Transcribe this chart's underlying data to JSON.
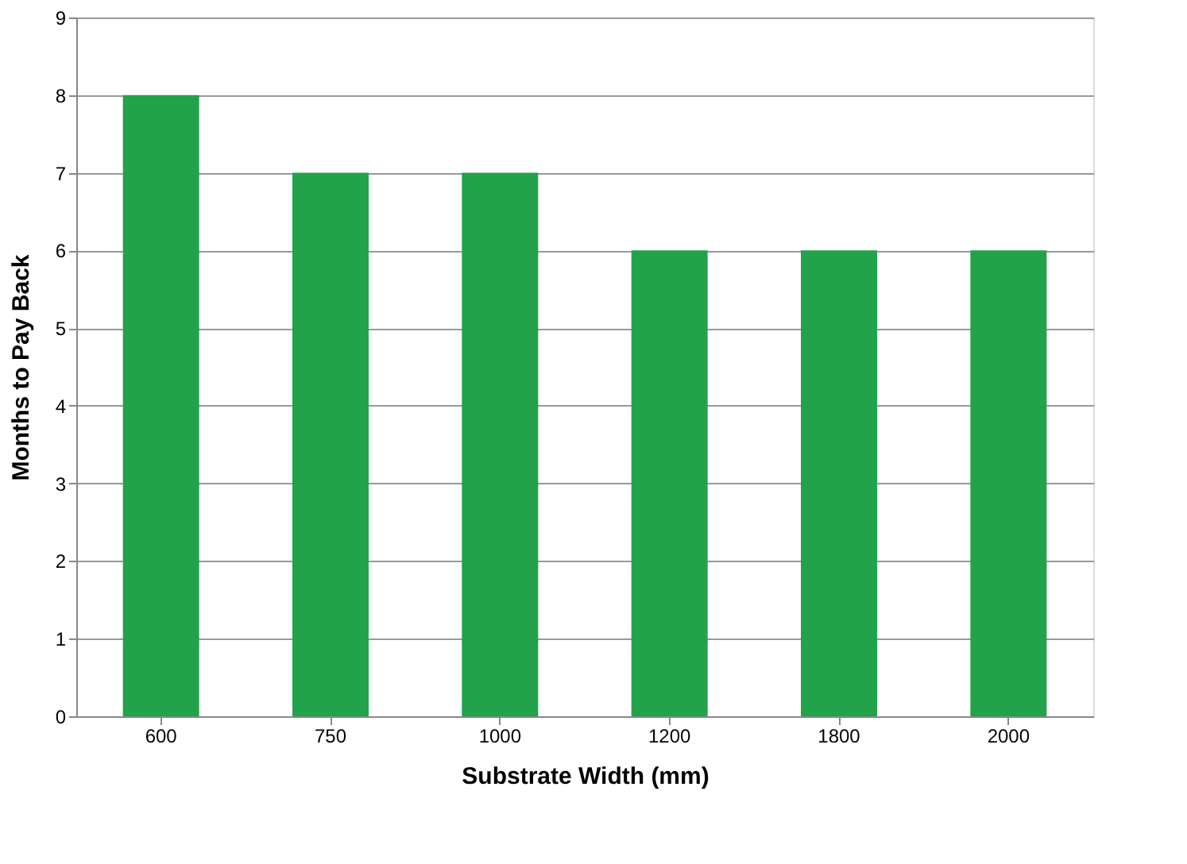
{
  "chart_data": {
    "type": "bar",
    "xlabel": "Substrate Width (mm)",
    "ylabel": "Months to Pay Back",
    "categories": [
      "600",
      "750",
      "1000",
      "1200",
      "1800",
      "2000"
    ],
    "values": [
      8,
      7,
      7,
      6,
      6,
      6
    ],
    "color": "#22a24b",
    "ylim": [
      0,
      9
    ],
    "yticks": [
      0,
      1,
      2,
      3,
      4,
      5,
      6,
      7,
      8,
      9
    ],
    "grid": "y"
  }
}
